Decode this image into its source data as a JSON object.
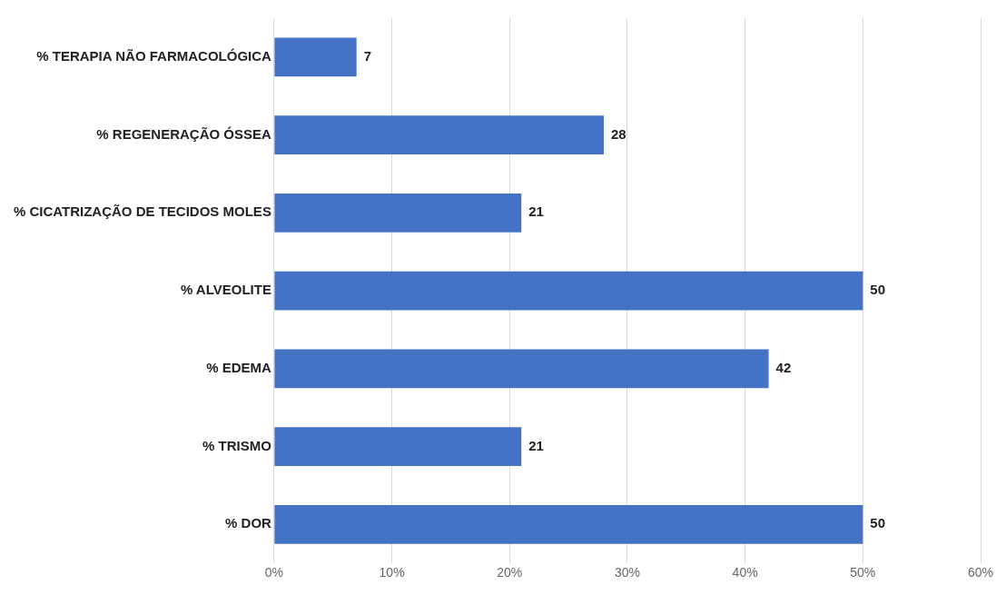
{
  "chart_data": {
    "type": "bar",
    "orientation": "horizontal",
    "categories": [
      "% TERAPIA NÃO FARMACOLÓGICA",
      "% REGENERAÇÃO ÓSSEA",
      "% CICATRIZAÇÃO DE TECIDOS MOLES",
      "% ALVEOLITE",
      "% EDEMA",
      "% TRISMO",
      "% DOR"
    ],
    "values": [
      7,
      28,
      21,
      50,
      42,
      21,
      50
    ],
    "color": "#4472c4",
    "xlim": [
      0,
      60
    ],
    "xticks": [
      {
        "value": 0,
        "label": "0%"
      },
      {
        "value": 10,
        "label": "10%"
      },
      {
        "value": 20,
        "label": "20%"
      },
      {
        "value": 30,
        "label": "30%"
      },
      {
        "value": 40,
        "label": "40%"
      },
      {
        "value": 50,
        "label": "50%"
      },
      {
        "value": 60,
        "label": "60%"
      }
    ],
    "grid": "x",
    "legend": false,
    "data_labels": true
  }
}
